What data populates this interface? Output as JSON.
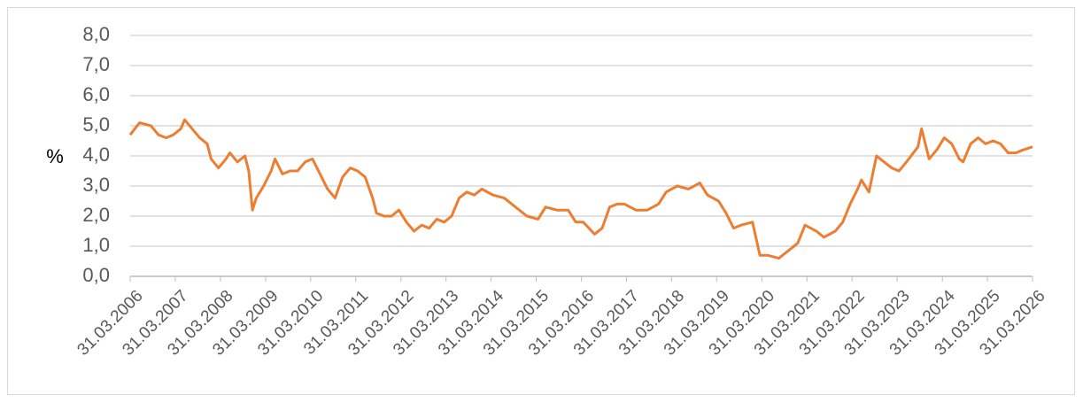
{
  "chart_data": {
    "type": "line",
    "y_label": "%",
    "x": [
      "2006-03-31",
      "2006-06-15",
      "2006-09-15",
      "2006-11-15",
      "2007-01-15",
      "2007-03-15",
      "2007-05-15",
      "2007-06-15",
      "2007-08-15",
      "2007-10-15",
      "2007-12-15",
      "2008-01-15",
      "2008-03-15",
      "2008-05-15",
      "2008-06-15",
      "2008-08-15",
      "2008-10-15",
      "2008-11-15",
      "2008-12-15",
      "2009-01-15",
      "2009-03-15",
      "2009-05-15",
      "2009-06-15",
      "2009-08-15",
      "2009-10-15",
      "2009-12-15",
      "2010-02-15",
      "2010-04-15",
      "2010-06-15",
      "2010-08-15",
      "2010-10-15",
      "2010-12-15",
      "2011-02-15",
      "2011-04-15",
      "2011-06-15",
      "2011-08-15",
      "2011-09-15",
      "2011-11-15",
      "2012-01-15",
      "2012-03-15",
      "2012-05-15",
      "2012-07-15",
      "2012-09-15",
      "2012-11-15",
      "2013-01-15",
      "2013-03-15",
      "2013-05-15",
      "2013-07-15",
      "2013-09-15",
      "2013-11-15",
      "2014-01-15",
      "2014-04-15",
      "2014-07-15",
      "2014-10-15",
      "2015-01-15",
      "2015-04-15",
      "2015-06-15",
      "2015-09-15",
      "2015-12-15",
      "2016-02-15",
      "2016-04-15",
      "2016-07-15",
      "2016-09-15",
      "2016-11-15",
      "2017-01-15",
      "2017-03-15",
      "2017-06-15",
      "2017-09-15",
      "2017-12-15",
      "2018-02-15",
      "2018-05-15",
      "2018-08-15",
      "2018-11-15",
      "2019-01-15",
      "2019-04-15",
      "2019-06-15",
      "2019-08-15",
      "2019-10-15",
      "2020-01-15",
      "2020-03-15",
      "2020-05-15",
      "2020-08-15",
      "2020-11-15",
      "2021-01-15",
      "2021-03-15",
      "2021-06-15",
      "2021-08-15",
      "2021-11-15",
      "2022-01-15",
      "2022-03-15",
      "2022-05-15",
      "2022-06-15",
      "2022-08-15",
      "2022-10-15",
      "2022-12-15",
      "2023-02-15",
      "2023-04-15",
      "2023-06-15",
      "2023-09-15",
      "2023-10-15",
      "2023-12-15",
      "2024-02-15",
      "2024-04-15",
      "2024-06-15",
      "2024-08-15",
      "2024-09-15",
      "2024-11-15",
      "2025-01-15",
      "2025-03-15",
      "2025-05-15",
      "2025-07-15",
      "2025-09-15",
      "2025-11-15",
      "2026-01-15",
      "2026-03-31"
    ],
    "series": [
      {
        "color": "#ed7d31",
        "values": [
          4.7,
          5.1,
          5.0,
          4.7,
          4.6,
          4.7,
          4.9,
          5.2,
          4.9,
          4.6,
          4.4,
          3.9,
          3.6,
          3.9,
          4.1,
          3.8,
          4.0,
          3.5,
          2.2,
          2.6,
          3.0,
          3.5,
          3.9,
          3.4,
          3.5,
          3.5,
          3.8,
          3.9,
          3.4,
          2.9,
          2.6,
          3.3,
          3.6,
          3.5,
          3.3,
          2.6,
          2.1,
          2.0,
          2.0,
          2.2,
          1.8,
          1.5,
          1.7,
          1.6,
          1.9,
          1.8,
          2.0,
          2.6,
          2.8,
          2.7,
          2.9,
          2.7,
          2.6,
          2.3,
          2.0,
          1.9,
          2.3,
          2.2,
          2.2,
          1.8,
          1.8,
          1.4,
          1.6,
          2.3,
          2.4,
          2.4,
          2.2,
          2.2,
          2.4,
          2.8,
          3.0,
          2.9,
          3.1,
          2.7,
          2.5,
          2.1,
          1.6,
          1.7,
          1.8,
          0.7,
          0.7,
          0.6,
          0.9,
          1.1,
          1.7,
          1.5,
          1.3,
          1.5,
          1.8,
          2.4,
          2.9,
          3.2,
          2.8,
          4.0,
          3.8,
          3.6,
          3.5,
          3.8,
          4.3,
          4.9,
          3.9,
          4.2,
          4.6,
          4.4,
          3.9,
          3.8,
          4.4,
          4.6,
          4.4,
          4.5,
          4.4,
          4.1,
          4.1,
          4.2,
          4.3
        ]
      }
    ],
    "xlim": [
      "2006-03-31",
      "2026-03-31"
    ],
    "xticks": [
      {
        "value": "2006-03-31",
        "label": "31.03.2006"
      },
      {
        "value": "2007-03-31",
        "label": "31.03.2007"
      },
      {
        "value": "2008-03-31",
        "label": "31.03.2008"
      },
      {
        "value": "2009-03-31",
        "label": "31.03.2009"
      },
      {
        "value": "2010-03-31",
        "label": "31.03.2010"
      },
      {
        "value": "2011-03-31",
        "label": "31.03.2011"
      },
      {
        "value": "2012-03-31",
        "label": "31.03.2012"
      },
      {
        "value": "2013-03-31",
        "label": "31.03.2013"
      },
      {
        "value": "2014-03-31",
        "label": "31.03.2014"
      },
      {
        "value": "2015-03-31",
        "label": "31.03.2015"
      },
      {
        "value": "2016-03-31",
        "label": "31.03.2016"
      },
      {
        "value": "2017-03-31",
        "label": "31.03.2017"
      },
      {
        "value": "2018-03-31",
        "label": "31.03.2018"
      },
      {
        "value": "2019-03-31",
        "label": "31.03.2019"
      },
      {
        "value": "2020-03-31",
        "label": "31.03.2020"
      },
      {
        "value": "2021-03-31",
        "label": "31.03.2021"
      },
      {
        "value": "2022-03-31",
        "label": "31.03.2022"
      },
      {
        "value": "2023-03-31",
        "label": "31.03.2023"
      },
      {
        "value": "2024-03-31",
        "label": "31.03.2024"
      },
      {
        "value": "2025-03-31",
        "label": "31.03.2025"
      },
      {
        "value": "2026-03-31",
        "label": "31.03.2026"
      }
    ],
    "ylim": [
      0,
      8
    ],
    "yticks": [
      {
        "value": 0,
        "label": "0,0"
      },
      {
        "value": 1,
        "label": "1,0"
      },
      {
        "value": 2,
        "label": "2,0"
      },
      {
        "value": 3,
        "label": "3,0"
      },
      {
        "value": 4,
        "label": "4,0"
      },
      {
        "value": 5,
        "label": "5,0"
      },
      {
        "value": 6,
        "label": "6,0"
      },
      {
        "value": 7,
        "label": "7,0"
      },
      {
        "value": 8,
        "label": "8,0"
      }
    ],
    "grid": true
  }
}
